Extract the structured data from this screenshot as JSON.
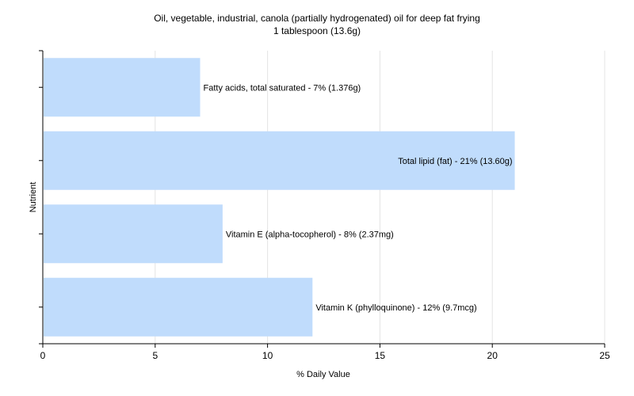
{
  "chart_data": {
    "type": "bar",
    "orientation": "horizontal",
    "title": "Oil, vegetable, industrial, canola (partially hydrogenated) oil for deep fat frying",
    "subtitle": "1 tablespoon (13.6g)",
    "xlabel": "% Daily Value",
    "ylabel": "Nutrient",
    "xlim": [
      0,
      25
    ],
    "xticks": [
      "0",
      "5",
      "10",
      "15",
      "20",
      "25"
    ],
    "grid": true,
    "bar_color": "#c0dcfc",
    "categories": [
      "Fatty acids, total saturated",
      "Total lipid (fat)",
      "Vitamin E (alpha-tocopherol)",
      "Vitamin K (phylloquinone)"
    ],
    "values": [
      7,
      21,
      8,
      12
    ],
    "labels": [
      "Fatty acids, total saturated - 7% (1.376g)",
      "Total lipid (fat) - 21% (13.60g)",
      "Vitamin E (alpha-tocopherol) - 8% (2.37mg)",
      "Vitamin K (phylloquinone) - 12% (9.7mcg)"
    ]
  }
}
